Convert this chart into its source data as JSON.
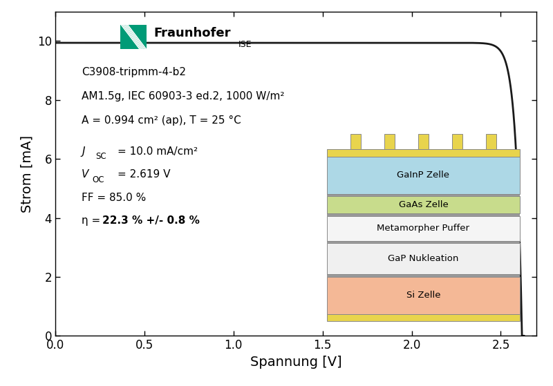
{
  "xlabel": "Spannung [V]",
  "ylabel": "Strom [mA]",
  "xlim": [
    0.0,
    2.7
  ],
  "ylim": [
    0.0,
    11.0
  ],
  "xticks": [
    0.0,
    0.5,
    1.0,
    1.5,
    2.0,
    2.5
  ],
  "yticks": [
    0,
    2,
    4,
    6,
    8,
    10
  ],
  "Jsc": 10.0,
  "Voc": 2.619,
  "FF": 0.85,
  "cell_area": 0.994,
  "bg_color": "#ffffff",
  "line_color": "#1a1a1a",
  "fraunhofer_green": "#009b77",
  "annotation_lines": [
    "C3908-tripmm-4-b2",
    "AM1.5g, IEC 60903-3 ed.2, 1000 W/m²",
    "A = 0.994 cm² (ap), T = 25 °C"
  ],
  "layer_labels": [
    "GaInP Zelle",
    "GaAs Zelle",
    "Metamorpher Puffer",
    "GaP Nukleation",
    "Si Zelle"
  ],
  "layer_colors": [
    "#add8e6",
    "#c8dc8c",
    "#f5f5f5",
    "#f0f0f0",
    "#f4b896"
  ],
  "layer_sep_color": "#999999",
  "contact_color": "#e8d44d",
  "contact_border_color": "#b8a800",
  "layer_border_color": "#888888",
  "xlabel_fontsize": 14,
  "ylabel_fontsize": 14,
  "tick_fontsize": 12,
  "ann_fontsize": 11,
  "param_fontsize": 11
}
